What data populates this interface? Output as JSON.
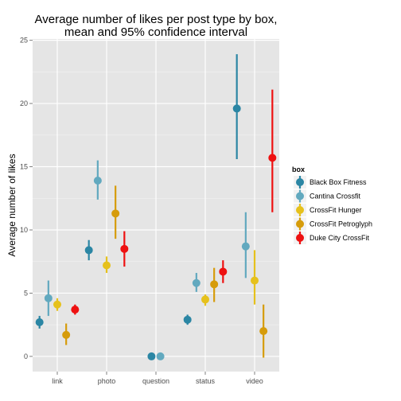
{
  "chart_data": {
    "type": "scatter",
    "subtype": "point-range (dodged)",
    "title_lines": [
      "Average number of likes per post type by box,",
      "mean and 95% confidence interval"
    ],
    "xlabel": "",
    "ylabel": "Average number of likes",
    "categories": [
      "link",
      "photo",
      "question",
      "status",
      "video"
    ],
    "ylim": [
      -1.2,
      25.1
    ],
    "yticks": [
      0,
      5,
      10,
      15,
      20,
      25
    ],
    "grid": true,
    "legend": {
      "title": "box",
      "position": "right"
    },
    "series": [
      {
        "name": "Black Box Fitness",
        "color": "#2b86a4",
        "points": [
          {
            "x": "link",
            "mean": 2.7,
            "lower": 2.2,
            "upper": 3.2
          },
          {
            "x": "photo",
            "mean": 8.4,
            "lower": 7.6,
            "upper": 9.2
          },
          {
            "x": "question",
            "mean": 0.0,
            "lower": 0.0,
            "upper": 0.0
          },
          {
            "x": "status",
            "mean": 2.9,
            "lower": 2.5,
            "upper": 3.3
          },
          {
            "x": "video",
            "mean": 19.6,
            "lower": 15.6,
            "upper": 23.9
          }
        ]
      },
      {
        "name": "Cantina Crossfit",
        "color": "#62a9bf",
        "points": [
          {
            "x": "link",
            "mean": 4.6,
            "lower": 3.2,
            "upper": 6.0
          },
          {
            "x": "photo",
            "mean": 13.9,
            "lower": 12.4,
            "upper": 15.5
          },
          {
            "x": "question",
            "mean": 0.0,
            "lower": 0.0,
            "upper": 0.0
          },
          {
            "x": "status",
            "mean": 5.8,
            "lower": 5.1,
            "upper": 6.6
          },
          {
            "x": "video",
            "mean": 8.7,
            "lower": 6.2,
            "upper": 11.4
          }
        ]
      },
      {
        "name": "CrossFit Hunger",
        "color": "#e6c11c",
        "points": [
          {
            "x": "link",
            "mean": 4.1,
            "lower": 3.6,
            "upper": 4.6
          },
          {
            "x": "photo",
            "mean": 7.2,
            "lower": 6.6,
            "upper": 7.9
          },
          {
            "x": "status",
            "mean": 4.5,
            "lower": 4.0,
            "upper": 4.9
          },
          {
            "x": "video",
            "mean": 6.0,
            "lower": 4.1,
            "upper": 8.4
          }
        ]
      },
      {
        "name": "CrossFit Petroglyph",
        "color": "#d69c0b",
        "points": [
          {
            "x": "link",
            "mean": 1.7,
            "lower": 0.9,
            "upper": 2.6
          },
          {
            "x": "photo",
            "mean": 11.3,
            "lower": 9.3,
            "upper": 13.5
          },
          {
            "x": "status",
            "mean": 5.7,
            "lower": 4.3,
            "upper": 7.0
          },
          {
            "x": "video",
            "mean": 2.0,
            "lower": -0.1,
            "upper": 4.1
          }
        ]
      },
      {
        "name": "Duke City CrossFit",
        "color": "#ee1111",
        "points": [
          {
            "x": "link",
            "mean": 3.7,
            "lower": 3.3,
            "upper": 4.1
          },
          {
            "x": "photo",
            "mean": 8.5,
            "lower": 7.1,
            "upper": 9.9
          },
          {
            "x": "status",
            "mean": 6.7,
            "lower": 5.8,
            "upper": 7.6
          },
          {
            "x": "video",
            "mean": 15.7,
            "lower": 11.4,
            "upper": 21.1
          }
        ]
      }
    ]
  }
}
